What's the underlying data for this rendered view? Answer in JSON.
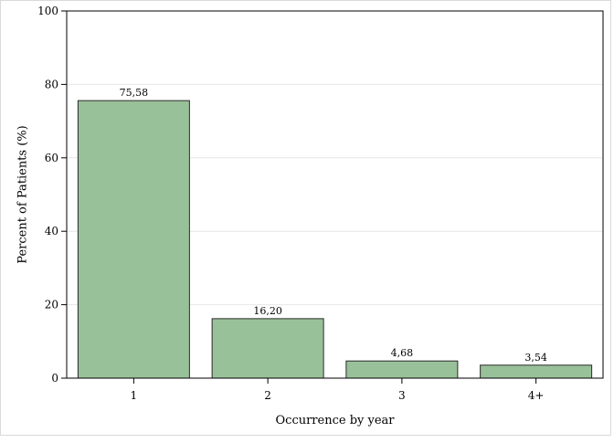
{
  "chart_data": {
    "type": "bar",
    "title": "",
    "xlabel": "Occurrence by year",
    "ylabel": "Percent of Patients (%)",
    "categories": [
      "1",
      "2",
      "3",
      "4+"
    ],
    "values": [
      75.58,
      16.2,
      4.68,
      3.54
    ],
    "data_labels": [
      "75,58",
      "16,20",
      "4,68",
      "3,54"
    ],
    "ylim": [
      0,
      100
    ],
    "yticks": [
      0,
      20,
      40,
      60,
      80,
      100
    ],
    "ytick_labels": [
      "0",
      "20",
      "40",
      "60",
      "80",
      "100"
    ],
    "grid": true,
    "legend": "none",
    "colors": {
      "bar_fill": "#99c199",
      "bar_edge": "#2a2a2a",
      "gridline": "#e6e6e6",
      "axis": "#000000",
      "frame": "#000000"
    }
  }
}
